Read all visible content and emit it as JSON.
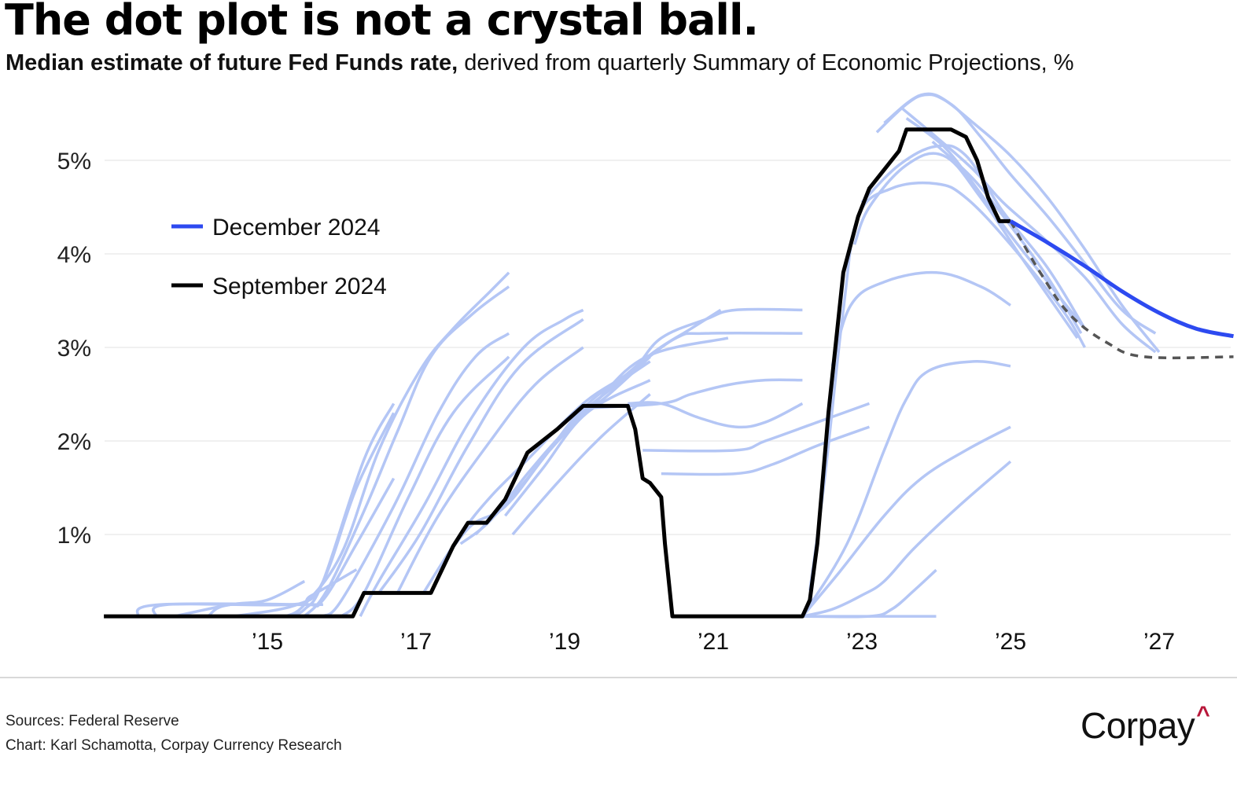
{
  "header": {
    "title": "The dot plot is not a crystal ball.",
    "subtitle_bold": "Median estimate of future Fed Funds rate,",
    "subtitle_rest": " derived from quarterly Summary of Economic Projections, %"
  },
  "footer": {
    "source": "Sources: Federal Reserve",
    "credit": "Chart: Karl Schamotta, Corpay Currency Research",
    "logo_text": "Corpay",
    "logo_mark": "^"
  },
  "colors": {
    "projection": "#b4c6f5",
    "historical": "#000000",
    "december": "#2d4af0",
    "september_dash": "#555555",
    "grid": "#ececec",
    "logo_accent": "#b8173a"
  },
  "chart_data": {
    "type": "line",
    "title": "The dot plot is not a crystal ball.",
    "subtitle": "Median estimate of future Fed Funds rate, derived from quarterly Summary of Economic Projections, %",
    "xlabel": "",
    "ylabel": "",
    "xlim": [
      2012.8,
      2028.0
    ],
    "ylim": [
      0,
      5.6
    ],
    "grid": true,
    "x_ticks": [
      2015,
      2017,
      2019,
      2021,
      2023,
      2025,
      2027
    ],
    "x_tick_labels": [
      "’15",
      "’17",
      "’19",
      "’21",
      "’23",
      "’25",
      "’27"
    ],
    "y_ticks": [
      1,
      2,
      3,
      4,
      5
    ],
    "y_tick_labels": [
      "1%",
      "2%",
      "3%",
      "4%",
      "5%"
    ],
    "legend": {
      "placement": "left",
      "entries": [
        {
          "label": "December 2024",
          "series": "december_2024"
        },
        {
          "label": "September 2024",
          "series": "september_2024"
        }
      ]
    },
    "series": [
      {
        "name": "historical_fed_funds",
        "style": "historical",
        "points": [
          [
            2012.8,
            0.125
          ],
          [
            2016.15,
            0.125
          ],
          [
            2016.3,
            0.375
          ],
          [
            2017.2,
            0.375
          ],
          [
            2017.5,
            0.875
          ],
          [
            2017.7,
            1.125
          ],
          [
            2017.95,
            1.125
          ],
          [
            2018.2,
            1.375
          ],
          [
            2018.5,
            1.875
          ],
          [
            2018.9,
            2.125
          ],
          [
            2019.25,
            2.375
          ],
          [
            2019.85,
            2.375
          ],
          [
            2019.95,
            2.125
          ],
          [
            2020.05,
            1.6
          ],
          [
            2020.15,
            1.55
          ],
          [
            2020.3,
            1.4
          ],
          [
            2020.35,
            0.9
          ],
          [
            2020.45,
            0.125
          ],
          [
            2022.2,
            0.125
          ],
          [
            2022.3,
            0.3
          ],
          [
            2022.4,
            0.9
          ],
          [
            2022.55,
            2.3
          ],
          [
            2022.75,
            3.8
          ],
          [
            2022.95,
            4.4
          ],
          [
            2023.1,
            4.7
          ],
          [
            2023.35,
            4.95
          ],
          [
            2023.5,
            5.1
          ],
          [
            2023.6,
            5.33
          ],
          [
            2023.75,
            5.33
          ],
          [
            2024.2,
            5.33
          ],
          [
            2024.4,
            5.25
          ],
          [
            2024.55,
            5.0
          ],
          [
            2024.7,
            4.6
          ],
          [
            2024.85,
            4.35
          ],
          [
            2025.0,
            4.35
          ]
        ]
      },
      {
        "name": "december_2024",
        "label": "December 2024",
        "style": "december",
        "points": [
          [
            2025.0,
            4.35
          ],
          [
            2025.5,
            4.12
          ],
          [
            2026.0,
            3.87
          ],
          [
            2026.5,
            3.6
          ],
          [
            2027.0,
            3.37
          ],
          [
            2027.5,
            3.2
          ],
          [
            2028.0,
            3.12
          ]
        ]
      },
      {
        "name": "september_2024",
        "label": "September 2024",
        "style": "september",
        "points": [
          [
            2025.0,
            4.35
          ],
          [
            2025.4,
            3.8
          ],
          [
            2025.8,
            3.35
          ],
          [
            2026.3,
            3.05
          ],
          [
            2026.8,
            2.9
          ],
          [
            2028.0,
            2.9
          ]
        ]
      }
    ],
    "projections": [
      [
        [
          2013.25,
          0.125
        ],
        [
          2013.55,
          0.25
        ],
        [
          2015.75,
          0.25
        ]
      ],
      [
        [
          2013.5,
          0.125
        ],
        [
          2013.65,
          0.25
        ],
        [
          2015.3,
          0.25
        ],
        [
          2015.6,
          0.35
        ],
        [
          2016.2,
          0.625
        ]
      ],
      [
        [
          2013.75,
          0.125
        ],
        [
          2014.5,
          0.25
        ],
        [
          2015.0,
          0.3
        ],
        [
          2015.5,
          0.5
        ]
      ],
      [
        [
          2014.2,
          0.125
        ],
        [
          2014.5,
          0.25
        ],
        [
          2015.5,
          0.25
        ],
        [
          2015.75,
          0.3
        ],
        [
          2016.2,
          0.9
        ],
        [
          2016.7,
          1.6
        ]
      ],
      [
        [
          2014.55,
          0.125
        ],
        [
          2015.4,
          0.25
        ],
        [
          2015.75,
          0.5
        ],
        [
          2016.2,
          1.5
        ],
        [
          2016.7,
          2.3
        ]
      ],
      [
        [
          2015.3,
          0.125
        ],
        [
          2015.5,
          0.2
        ],
        [
          2015.75,
          0.5
        ],
        [
          2016.3,
          1.8
        ],
        [
          2016.7,
          2.4
        ]
      ],
      [
        [
          2015.25,
          0.125
        ],
        [
          2015.5,
          0.25
        ],
        [
          2016.0,
          0.8
        ],
        [
          2016.5,
          1.9
        ],
        [
          2017.05,
          2.75
        ],
        [
          2017.5,
          3.2
        ],
        [
          2018.0,
          3.6
        ],
        [
          2018.25,
          3.8
        ]
      ],
      [
        [
          2015.5,
          0.125
        ],
        [
          2015.8,
          0.4
        ],
        [
          2016.3,
          1.25
        ],
        [
          2016.75,
          2.1
        ],
        [
          2017.2,
          2.9
        ],
        [
          2017.75,
          3.35
        ],
        [
          2018.25,
          3.65
        ]
      ],
      [
        [
          2015.75,
          0.125
        ],
        [
          2016.0,
          0.3
        ],
        [
          2016.7,
          1.3
        ],
        [
          2017.3,
          2.3
        ],
        [
          2017.8,
          2.9
        ],
        [
          2018.25,
          3.15
        ]
      ],
      [
        [
          2016.0,
          0.125
        ],
        [
          2016.3,
          0.375
        ],
        [
          2016.9,
          1.4
        ],
        [
          2017.5,
          2.3
        ],
        [
          2018.25,
          2.9
        ]
      ],
      [
        [
          2016.25,
          0.125
        ],
        [
          2016.5,
          0.5
        ],
        [
          2017.1,
          1.3
        ],
        [
          2017.75,
          2.25
        ],
        [
          2018.45,
          3.0
        ],
        [
          2019.0,
          3.3
        ],
        [
          2019.25,
          3.4
        ]
      ],
      [
        [
          2016.5,
          0.375
        ],
        [
          2017.05,
          1.0
        ],
        [
          2017.7,
          1.95
        ],
        [
          2018.4,
          2.8
        ],
        [
          2019.25,
          3.3
        ]
      ],
      [
        [
          2016.75,
          0.375
        ],
        [
          2017.3,
          1.2
        ],
        [
          2018.0,
          2.0
        ],
        [
          2018.6,
          2.6
        ],
        [
          2019.25,
          3.0
        ]
      ],
      [
        [
          2017.1,
          0.375
        ],
        [
          2017.6,
          1.0
        ],
        [
          2018.0,
          1.4
        ],
        [
          2018.5,
          1.8
        ],
        [
          2019.25,
          2.4
        ],
        [
          2019.9,
          2.75
        ],
        [
          2020.3,
          3.1
        ],
        [
          2020.9,
          3.3
        ],
        [
          2021.3,
          3.4
        ],
        [
          2022.2,
          3.4
        ]
      ],
      [
        [
          2017.4,
          0.75
        ],
        [
          2017.75,
          1.1
        ],
        [
          2018.2,
          1.3
        ],
        [
          2018.7,
          1.8
        ],
        [
          2019.25,
          2.35
        ],
        [
          2019.9,
          2.75
        ],
        [
          2020.5,
          3.1
        ],
        [
          2020.9,
          3.15
        ],
        [
          2022.2,
          3.15
        ]
      ],
      [
        [
          2017.6,
          0.9
        ],
        [
          2018.0,
          1.15
        ],
        [
          2018.5,
          1.65
        ],
        [
          2019.0,
          2.1
        ],
        [
          2019.6,
          2.55
        ],
        [
          2020.2,
          2.95
        ],
        [
          2020.7,
          3.2
        ],
        [
          2021.1,
          3.4
        ]
      ],
      [
        [
          2017.8,
          1.0
        ],
        [
          2018.3,
          1.4
        ],
        [
          2018.8,
          1.9
        ],
        [
          2019.4,
          2.4
        ],
        [
          2020.1,
          2.9
        ],
        [
          2021.2,
          3.1
        ]
      ],
      [
        [
          2017.9,
          1.1
        ],
        [
          2018.4,
          1.5
        ],
        [
          2019.0,
          2.1
        ],
        [
          2019.6,
          2.5
        ],
        [
          2020.15,
          2.9
        ]
      ],
      [
        [
          2018.0,
          1.15
        ],
        [
          2018.5,
          1.6
        ],
        [
          2019.1,
          2.2
        ],
        [
          2019.7,
          2.6
        ],
        [
          2020.15,
          2.85
        ]
      ],
      [
        [
          2018.2,
          1.2
        ],
        [
          2018.7,
          1.7
        ],
        [
          2019.3,
          2.3
        ],
        [
          2020.15,
          2.65
        ]
      ],
      [
        [
          2018.3,
          1.0
        ],
        [
          2018.9,
          1.55
        ],
        [
          2019.5,
          2.05
        ],
        [
          2020.15,
          2.5
        ]
      ],
      [
        [
          2019.25,
          2.35
        ],
        [
          2020.3,
          2.4
        ],
        [
          2020.7,
          2.5
        ],
        [
          2021.2,
          2.6
        ],
        [
          2021.7,
          2.65
        ],
        [
          2022.2,
          2.65
        ]
      ],
      [
        [
          2019.85,
          2.4
        ],
        [
          2020.3,
          2.4
        ],
        [
          2020.8,
          2.25
        ],
        [
          2021.3,
          2.15
        ],
        [
          2021.7,
          2.2
        ],
        [
          2022.2,
          2.4
        ]
      ],
      [
        [
          2020.05,
          1.9
        ],
        [
          2021.3,
          1.9
        ],
        [
          2021.7,
          2.0
        ],
        [
          2022.4,
          2.2
        ],
        [
          2023.1,
          2.4
        ]
      ],
      [
        [
          2020.3,
          1.65
        ],
        [
          2021.3,
          1.65
        ],
        [
          2021.8,
          1.75
        ],
        [
          2022.4,
          1.95
        ],
        [
          2023.1,
          2.15
        ]
      ],
      [
        [
          2022.3,
          0.4
        ],
        [
          2022.5,
          1.6
        ],
        [
          2022.75,
          3.4
        ],
        [
          2022.95,
          4.4
        ],
        [
          2023.4,
          4.7
        ],
        [
          2024.0,
          4.75
        ],
        [
          2024.4,
          4.6
        ],
        [
          2025.0,
          4.1
        ],
        [
          2025.7,
          3.4
        ],
        [
          2026.0,
          3.0
        ]
      ],
      [
        [
          2022.6,
          2.8
        ],
        [
          2022.85,
          3.45
        ],
        [
          2023.3,
          3.7
        ],
        [
          2024.0,
          3.8
        ],
        [
          2024.6,
          3.65
        ],
        [
          2025.0,
          3.45
        ]
      ],
      [
        [
          2022.9,
          4.1
        ],
        [
          2023.1,
          4.5
        ],
        [
          2023.6,
          4.95
        ],
        [
          2024.1,
          5.05
        ],
        [
          2024.6,
          4.6
        ],
        [
          2025.2,
          3.9
        ],
        [
          2025.9,
          3.1
        ]
      ],
      [
        [
          2023.0,
          4.55
        ],
        [
          2023.5,
          4.95
        ],
        [
          2024.0,
          5.15
        ],
        [
          2024.4,
          5.05
        ],
        [
          2024.9,
          4.45
        ],
        [
          2025.5,
          3.85
        ],
        [
          2026.0,
          3.2
        ]
      ],
      [
        [
          2023.2,
          5.3
        ],
        [
          2023.6,
          5.6
        ],
        [
          2023.85,
          5.7
        ],
        [
          2024.1,
          5.65
        ],
        [
          2024.5,
          5.4
        ],
        [
          2025.0,
          5.05
        ],
        [
          2025.5,
          4.6
        ],
        [
          2026.0,
          4.05
        ],
        [
          2026.5,
          3.45
        ],
        [
          2027.0,
          2.95
        ]
      ],
      [
        [
          2023.3,
          5.4
        ],
        [
          2023.8,
          5.7
        ],
        [
          2024.2,
          5.6
        ],
        [
          2024.6,
          5.25
        ],
        [
          2025.0,
          4.85
        ],
        [
          2025.5,
          4.4
        ],
        [
          2026.0,
          3.9
        ],
        [
          2026.5,
          3.4
        ],
        [
          2026.95,
          3.15
        ]
      ],
      [
        [
          2023.55,
          5.55
        ],
        [
          2024.0,
          5.25
        ],
        [
          2024.5,
          4.9
        ],
        [
          2024.9,
          4.55
        ],
        [
          2025.4,
          4.2
        ],
        [
          2026.0,
          3.75
        ],
        [
          2026.5,
          3.25
        ],
        [
          2026.95,
          2.95
        ]
      ],
      [
        [
          2023.6,
          5.45
        ],
        [
          2024.1,
          5.15
        ],
        [
          2024.5,
          4.75
        ],
        [
          2025.0,
          4.2
        ],
        [
          2025.5,
          3.7
        ],
        [
          2026.0,
          3.2
        ]
      ],
      [
        [
          2023.95,
          5.2
        ],
        [
          2024.5,
          4.8
        ],
        [
          2025.0,
          4.3
        ],
        [
          2025.5,
          3.75
        ],
        [
          2025.95,
          3.15
        ]
      ],
      [
        [
          2022.2,
          0.125
        ],
        [
          2022.8,
          0.9
        ],
        [
          2023.3,
          1.9
        ],
        [
          2023.6,
          2.45
        ],
        [
          2023.9,
          2.75
        ],
        [
          2024.5,
          2.85
        ],
        [
          2025.0,
          2.8
        ]
      ],
      [
        [
          2022.2,
          0.125
        ],
        [
          2022.7,
          0.6
        ],
        [
          2023.3,
          1.2
        ],
        [
          2023.8,
          1.6
        ],
        [
          2024.4,
          1.9
        ],
        [
          2025.0,
          2.15
        ]
      ],
      [
        [
          2022.2,
          0.125
        ],
        [
          2022.6,
          0.2
        ],
        [
          2023.0,
          0.35
        ],
        [
          2023.3,
          0.5
        ],
        [
          2023.7,
          0.85
        ],
        [
          2024.3,
          1.3
        ],
        [
          2025.0,
          1.78
        ]
      ],
      [
        [
          2022.2,
          0.125
        ],
        [
          2023.1,
          0.125
        ],
        [
          2023.4,
          0.2
        ],
        [
          2023.7,
          0.4
        ],
        [
          2024.0,
          0.62
        ]
      ],
      [
        [
          2022.2,
          0.125
        ],
        [
          2024.0,
          0.125
        ]
      ]
    ]
  }
}
